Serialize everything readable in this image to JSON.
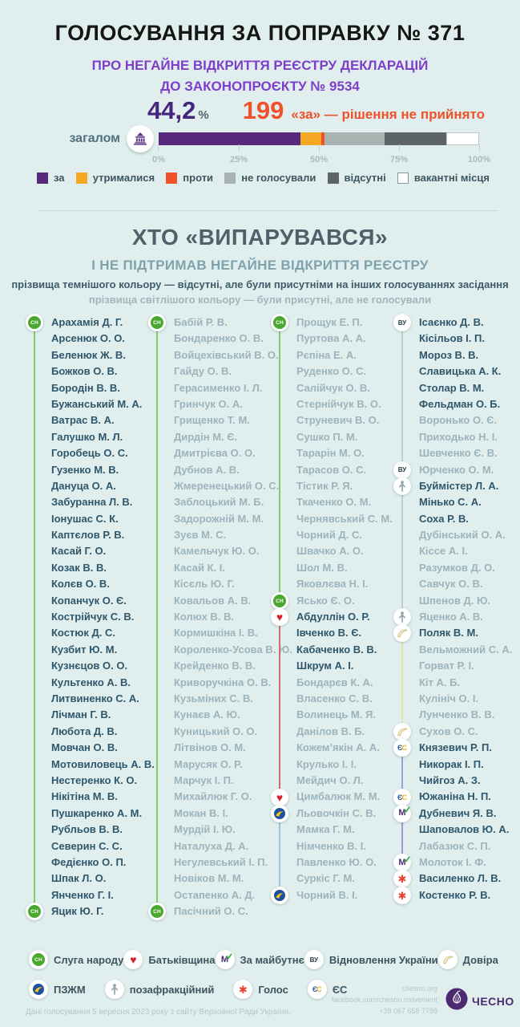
{
  "header": {
    "title": "ГОЛОСУВАННЯ ЗА ПОПРАВКУ № 371",
    "subtitle_line1": "ПРО НЕГАЙНЕ ВІДКРИТТЯ РЕЄСТРУ ДЕКЛАРАЦІЙ",
    "subtitle_line2": "ДО ЗАКОНОПРОЄКТУ № 9534"
  },
  "result": {
    "percent": "44,2",
    "percent_unit": "%",
    "votes": "199",
    "verdict": "«за» — рішення не прийнято",
    "row_label": "загалом",
    "row_icon": "parliament-building-icon"
  },
  "chart_data": {
    "type": "bar",
    "title": "Голосування за поправку № 371 — загалом",
    "categories": [
      "загалом"
    ],
    "series": [
      {
        "name": "за",
        "color": "#56297d",
        "value": 44.2
      },
      {
        "name": "утрималися",
        "color": "#f7a823",
        "value": 6.5
      },
      {
        "name": "проти",
        "color": "#f0512a",
        "value": 1.1
      },
      {
        "name": "не голосували",
        "color": "#a9b4b2",
        "value": 18.6
      },
      {
        "name": "відсутні",
        "color": "#5c6466",
        "value": 19.4
      },
      {
        "name": "вакантні місця",
        "color": "#ffffff",
        "value": 10.2
      }
    ],
    "x_ticks": [
      "0%",
      "25%",
      "50%",
      "75%",
      "100%"
    ],
    "xlim": [
      0,
      100
    ],
    "legend_position": "bottom",
    "grid": false
  },
  "section": {
    "title": "ХТО «ВИПАРУВАВСЯ»",
    "subtitle": "І НЕ ПІДТРИМАВ НЕГАЙНЕ ВІДКРИТТЯ РЕЄСТРУ",
    "note_dark": "прізвища темнішого кольору — відсутні, але були присутніми на інших голосуваннях засідання",
    "note_light": "прізвища світлішого кольору — були присутні, але не голосували"
  },
  "parties": {
    "sn": {
      "name": "Слуга народу",
      "icon": "sn-green-circle-icon",
      "line": "#86c96a"
    },
    "batk": {
      "name": "Батьківщина",
      "icon": "heart-icon",
      "line": "#d46a70"
    },
    "zm": {
      "name": "За майбутнє",
      "icon": "zm-letter-m-check-icon",
      "line": "#ab97cc"
    },
    "vu": {
      "name": "Відновлення України",
      "icon": "vu-letters-icon",
      "line": "#c2ced2"
    },
    "dovira": {
      "name": "Довіра",
      "icon": "dovira-sail-icon",
      "line": "#e9e0b0"
    },
    "pzzhm": {
      "name": "ПЗЖМ",
      "icon": "pzzhm-blue-bird-icon",
      "line": "#9dc3de"
    },
    "nonf": {
      "name": "позафракційний",
      "icon": "person-arrow-icon",
      "line": "#c2ced2"
    },
    "holos": {
      "name": "Голос",
      "icon": "holos-asterisk-icon",
      "line": "#e07a64"
    },
    "es": {
      "name": "ЄС",
      "icon": "es-letters-icon",
      "line": "#8fa8d8"
    }
  },
  "columns": [
    {
      "groups": [
        {
          "party": "sn",
          "members": [
            {
              "n": "Арахамія Д. Г.",
              "t": "d"
            },
            {
              "n": "Арсенюк О. О.",
              "t": "d"
            },
            {
              "n": "Беленюк Ж. В.",
              "t": "d"
            },
            {
              "n": "Божков О. В.",
              "t": "d"
            },
            {
              "n": "Бородін В. В.",
              "t": "d"
            },
            {
              "n": "Бужанський М. А.",
              "t": "d"
            },
            {
              "n": "Ватрас В. А.",
              "t": "d"
            },
            {
              "n": "Галушко М. Л.",
              "t": "d"
            },
            {
              "n": "Горобець О. С.",
              "t": "d"
            },
            {
              "n": "Гузенко М. В.",
              "t": "d"
            },
            {
              "n": "Дануца О. А.",
              "t": "d"
            },
            {
              "n": "Забуранна Л. В.",
              "t": "d"
            },
            {
              "n": "Іонушас С. К.",
              "t": "d"
            },
            {
              "n": "Каптєлов Р. В.",
              "t": "d"
            },
            {
              "n": "Касай Г. О.",
              "t": "d"
            },
            {
              "n": "Козак В. В.",
              "t": "d"
            },
            {
              "n": "Колєв О. В.",
              "t": "d"
            },
            {
              "n": "Копанчук О. Є.",
              "t": "d"
            },
            {
              "n": "Кострійчук С. В.",
              "t": "d"
            },
            {
              "n": "Костюк Д. С.",
              "t": "d"
            },
            {
              "n": "Кузбит Ю. М.",
              "t": "d"
            },
            {
              "n": "Кузнєцов О. О.",
              "t": "d"
            },
            {
              "n": "Культенко А. В.",
              "t": "d"
            },
            {
              "n": "Литвиненко С. А.",
              "t": "d"
            },
            {
              "n": "Лічман Г. В.",
              "t": "d"
            },
            {
              "n": "Любота Д. В.",
              "t": "d"
            },
            {
              "n": "Мовчан О. В.",
              "t": "d"
            },
            {
              "n": "Мотовиловець А. В.",
              "t": "d"
            },
            {
              "n": "Нестеренко К. О.",
              "t": "d"
            },
            {
              "n": "Нікітіна М. В.",
              "t": "d"
            },
            {
              "n": "Пушкаренко А. М.",
              "t": "d"
            },
            {
              "n": "Рубльов В. В.",
              "t": "d"
            },
            {
              "n": "Северин С. С.",
              "t": "d"
            },
            {
              "n": "Федієнко О. П.",
              "t": "d"
            },
            {
              "n": "Шпак Л. О.",
              "t": "d"
            },
            {
              "n": "Янченко Г. І.",
              "t": "d"
            },
            {
              "n": "Яцик Ю. Г.",
              "t": "d"
            }
          ]
        }
      ]
    },
    {
      "groups": [
        {
          "party": "sn",
          "members": [
            {
              "n": "Бабій Р. В.",
              "t": "l"
            },
            {
              "n": "Бондаренко О. В.",
              "t": "l"
            },
            {
              "n": "Войцехівський В. О.",
              "t": "l"
            },
            {
              "n": "Гайду О. В.",
              "t": "l"
            },
            {
              "n": "Герасименко І. Л.",
              "t": "l"
            },
            {
              "n": "Гринчук О. А.",
              "t": "l"
            },
            {
              "n": "Грищенко Т. М.",
              "t": "l"
            },
            {
              "n": "Дирдін М. Є.",
              "t": "l"
            },
            {
              "n": "Дмитрієва О. О.",
              "t": "l"
            },
            {
              "n": "Дубнов А. В.",
              "t": "l"
            },
            {
              "n": "Жмеренецький О. С.",
              "t": "l"
            },
            {
              "n": "Заблоцький М. Б.",
              "t": "l"
            },
            {
              "n": "Задорожній М. М.",
              "t": "l"
            },
            {
              "n": "Зуєв М. С.",
              "t": "l"
            },
            {
              "n": "Камельчук Ю. О.",
              "t": "l"
            },
            {
              "n": "Касай К. І.",
              "t": "l"
            },
            {
              "n": "Кісєль Ю. Г.",
              "t": "l"
            },
            {
              "n": "Ковальов А. В.",
              "t": "l"
            },
            {
              "n": "Колюх В. В.",
              "t": "l"
            },
            {
              "n": "Кормишкіна І. В.",
              "t": "l"
            },
            {
              "n": "Короленко-Усова В. Ю.",
              "t": "l"
            },
            {
              "n": "Крейденко В. В.",
              "t": "l"
            },
            {
              "n": "Криворучкіна О. В.",
              "t": "l"
            },
            {
              "n": "Кузьміних С. В.",
              "t": "l"
            },
            {
              "n": "Кунаєв А. Ю.",
              "t": "l"
            },
            {
              "n": "Куницький О. О.",
              "t": "l"
            },
            {
              "n": "Літвінов О. М.",
              "t": "l"
            },
            {
              "n": "Марусяк О. Р.",
              "t": "l"
            },
            {
              "n": "Марчук І. П.",
              "t": "l"
            },
            {
              "n": "Михайлюк Г. О.",
              "t": "l"
            },
            {
              "n": "Мокан В. І.",
              "t": "l"
            },
            {
              "n": "Мурдій І. Ю.",
              "t": "l"
            },
            {
              "n": "Наталуха Д. А.",
              "t": "l"
            },
            {
              "n": "Негулевський І. П.",
              "t": "l"
            },
            {
              "n": "Новіков М. М.",
              "t": "l"
            },
            {
              "n": "Остапенко А. Д.",
              "t": "l"
            },
            {
              "n": "Пасічний О. С.",
              "t": "l"
            }
          ]
        }
      ]
    },
    {
      "groups": [
        {
          "party": "sn",
          "members": [
            {
              "n": "Прощук Е. П.",
              "t": "l"
            },
            {
              "n": "Пуртова А. А.",
              "t": "l"
            },
            {
              "n": "Рєпіна Е. А.",
              "t": "l"
            },
            {
              "n": "Руденко О. С.",
              "t": "l"
            },
            {
              "n": "Салійчук О. В.",
              "t": "l"
            },
            {
              "n": "Стернійчук В. О.",
              "t": "l"
            },
            {
              "n": "Струневич В. О.",
              "t": "l"
            },
            {
              "n": "Сушко П. М.",
              "t": "l"
            },
            {
              "n": "Тарарін М. О.",
              "t": "l"
            },
            {
              "n": "Тарасов О. С.",
              "t": "l"
            },
            {
              "n": "Тістик Р. Я.",
              "t": "l"
            },
            {
              "n": "Ткаченко О. М.",
              "t": "l"
            },
            {
              "n": "Чернявський С. М.",
              "t": "l"
            },
            {
              "n": "Чорний Д. С.",
              "t": "l"
            },
            {
              "n": "Швачко А. О.",
              "t": "l"
            },
            {
              "n": "Шол М. В.",
              "t": "l"
            },
            {
              "n": "Яковлєва Н. І.",
              "t": "l"
            },
            {
              "n": "Ясько Є. О.",
              "t": "l"
            }
          ]
        },
        {
          "party": "batk",
          "members": [
            {
              "n": "Абдуллін О. Р.",
              "t": "d"
            },
            {
              "n": "Івченко В. Є.",
              "t": "d"
            },
            {
              "n": "Кабаченко В. В.",
              "t": "d"
            },
            {
              "n": "Шкрум А. І.",
              "t": "d"
            },
            {
              "n": "Бондарєв К. А.",
              "t": "l"
            },
            {
              "n": "Власенко С. В.",
              "t": "l"
            },
            {
              "n": "Волинець М. Я.",
              "t": "l"
            },
            {
              "n": "Данілов В. Б.",
              "t": "l"
            },
            {
              "n": "Кожем’якін А. А.",
              "t": "l"
            },
            {
              "n": "Крулько І. І.",
              "t": "l"
            },
            {
              "n": "Мейдич О. Л.",
              "t": "l"
            },
            {
              "n": "Цимбалюк М. М.",
              "t": "l"
            }
          ]
        },
        {
          "party": "pzzhm",
          "members": [
            {
              "n": "Льовочкін С. В.",
              "t": "l"
            },
            {
              "n": "Мамка Г. М.",
              "t": "l"
            },
            {
              "n": "Німченко В. І.",
              "t": "l"
            },
            {
              "n": "Павленко Ю. О.",
              "t": "l"
            },
            {
              "n": "Суркіс Г. М.",
              "t": "l"
            },
            {
              "n": "Чорний В. І.",
              "t": "l"
            }
          ]
        }
      ]
    },
    {
      "groups": [
        {
          "party": "vu",
          "members": [
            {
              "n": "Ісаєнко Д. В.",
              "t": "d"
            },
            {
              "n": "Кісільов І. П.",
              "t": "d"
            },
            {
              "n": "Мороз В. В.",
              "t": "d"
            },
            {
              "n": "Славицька А. К.",
              "t": "d"
            },
            {
              "n": "Столар В. М.",
              "t": "d"
            },
            {
              "n": "Фельдман О. Б.",
              "t": "d"
            },
            {
              "n": "Воронько О. Є.",
              "t": "l"
            },
            {
              "n": "Приходько Н. І.",
              "t": "l"
            },
            {
              "n": "Шевченко Є. В.",
              "t": "l"
            },
            {
              "n": "Юрченко О. М.",
              "t": "l"
            }
          ]
        },
        {
          "party": "nonf",
          "members": [
            {
              "n": "Буймістер Л. А.",
              "t": "d"
            },
            {
              "n": "Мінько С. А.",
              "t": "d"
            },
            {
              "n": "Соха Р. В.",
              "t": "d"
            },
            {
              "n": "Дубінський О. А.",
              "t": "l"
            },
            {
              "n": "Кіссе А. І.",
              "t": "l"
            },
            {
              "n": "Разумков Д. О.",
              "t": "l"
            },
            {
              "n": "Савчук О. В.",
              "t": "l"
            },
            {
              "n": "Шпенов Д. Ю.",
              "t": "l"
            },
            {
              "n": "Яценко А. В.",
              "t": "l"
            }
          ]
        },
        {
          "party": "dovira",
          "members": [
            {
              "n": "Поляк В. М.",
              "t": "d"
            },
            {
              "n": "Вельможний С. А.",
              "t": "l"
            },
            {
              "n": "Горват Р. І.",
              "t": "l"
            },
            {
              "n": "Кіт А. Б.",
              "t": "l"
            },
            {
              "n": "Кулініч О. І.",
              "t": "l"
            },
            {
              "n": "Лунченко В. В.",
              "t": "l"
            },
            {
              "n": "Сухов О. С.",
              "t": "l"
            }
          ]
        },
        {
          "party": "es",
          "members": [
            {
              "n": "Князевич Р. П.",
              "t": "d"
            },
            {
              "n": "Никорак І. П.",
              "t": "d"
            },
            {
              "n": "Чийгоз А. З.",
              "t": "d"
            },
            {
              "n": "Южаніна Н. П.",
              "t": "d"
            }
          ]
        },
        {
          "party": "zm",
          "members": [
            {
              "n": "Дубневич Я. В.",
              "t": "d"
            },
            {
              "n": "Шаповалов Ю. А.",
              "t": "d"
            },
            {
              "n": "Лабазюк С. П.",
              "t": "l"
            },
            {
              "n": "Молоток І. Ф.",
              "t": "l"
            }
          ]
        },
        {
          "party": "holos",
          "members": [
            {
              "n": "Василенко Л. В.",
              "t": "d"
            },
            {
              "n": "Костенко Р. В.",
              "t": "d"
            }
          ]
        }
      ]
    }
  ],
  "legend_rows": [
    [
      "sn",
      "batk",
      "zm",
      "vu",
      "dovira"
    ],
    [
      "pzzhm",
      "nonf",
      "holos",
      "es"
    ]
  ],
  "footer": {
    "source": "Дані голосування 5 вересня 2023 року з сайту Верховної Ради України.",
    "site": "chesno.org",
    "facebook": "facebook.com/chesno.movement",
    "phone": "+38 067 658 7798",
    "logo_text": "ЧЕСНО",
    "logo_icon": "chesno-garlic-logo"
  }
}
